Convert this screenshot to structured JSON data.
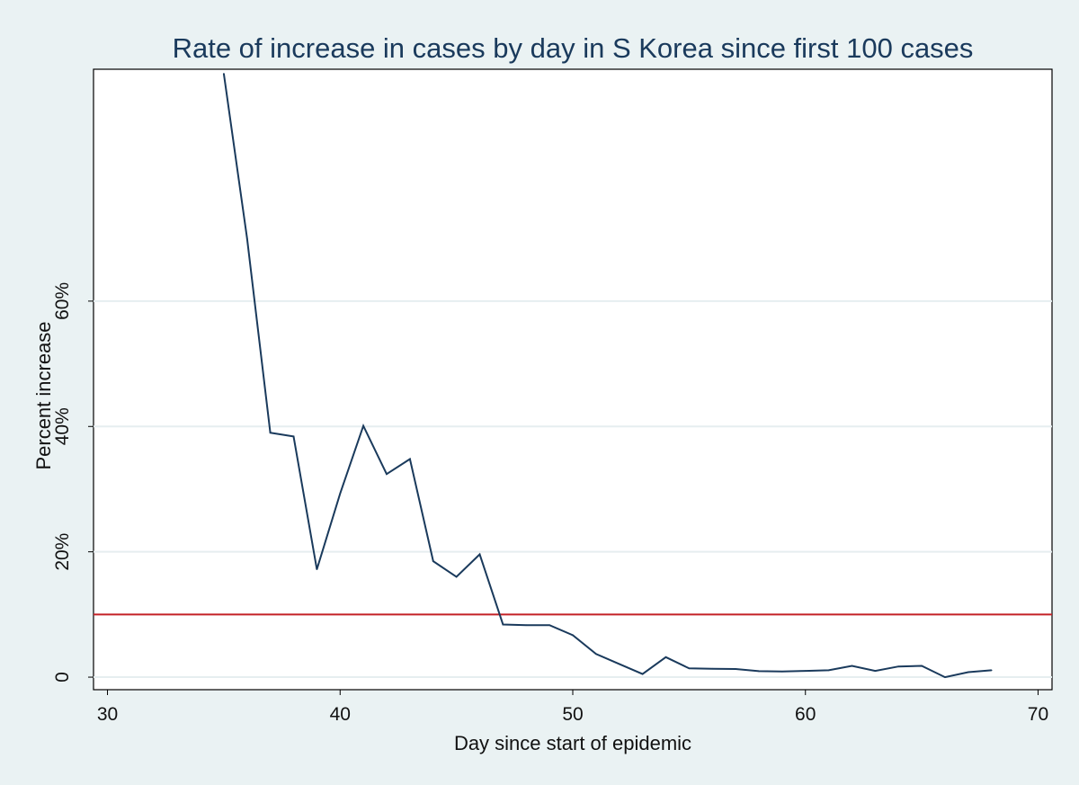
{
  "chart_data": {
    "type": "line",
    "title": "Rate of increase in cases by day in S Korea since first 100 cases",
    "xlabel": "Day since start of epidemic",
    "ylabel": "Percent increase",
    "xlim": [
      29.4,
      70.6
    ],
    "ylim": [
      -2,
      97
    ],
    "x_ticks": [
      30,
      40,
      50,
      60,
      70
    ],
    "x_tick_labels": [
      "30",
      "40",
      "50",
      "60",
      "70"
    ],
    "y_ticks": [
      0,
      20,
      40,
      60
    ],
    "y_tick_labels": [
      "0",
      "20%",
      "40%",
      "60%"
    ],
    "grid": true,
    "series": [
      {
        "name": "Percent increase",
        "color": "#1a3a5c",
        "x": [
          35,
          36,
          37,
          38,
          39,
          40,
          41,
          42,
          43,
          44,
          45,
          46,
          47,
          48,
          49,
          50,
          51,
          52,
          53,
          54,
          55,
          56,
          57,
          58,
          59,
          60,
          61,
          62,
          63,
          64,
          65,
          66,
          67,
          68
        ],
        "y": [
          96.3,
          70,
          39,
          38.4,
          17.2,
          29.3,
          40.1,
          32.4,
          34.8,
          18.5,
          16,
          19.6,
          8.4,
          8.3,
          8.3,
          6.7,
          3.7,
          2.1,
          0.5,
          3.2,
          1.4,
          1.35,
          1.3,
          0.95,
          0.9,
          1.0,
          1.1,
          1.8,
          1.0,
          1.7,
          1.8,
          0.0,
          0.8,
          1.1
        ]
      }
    ],
    "reference_line": {
      "y": 10,
      "color": "#c42026"
    }
  }
}
